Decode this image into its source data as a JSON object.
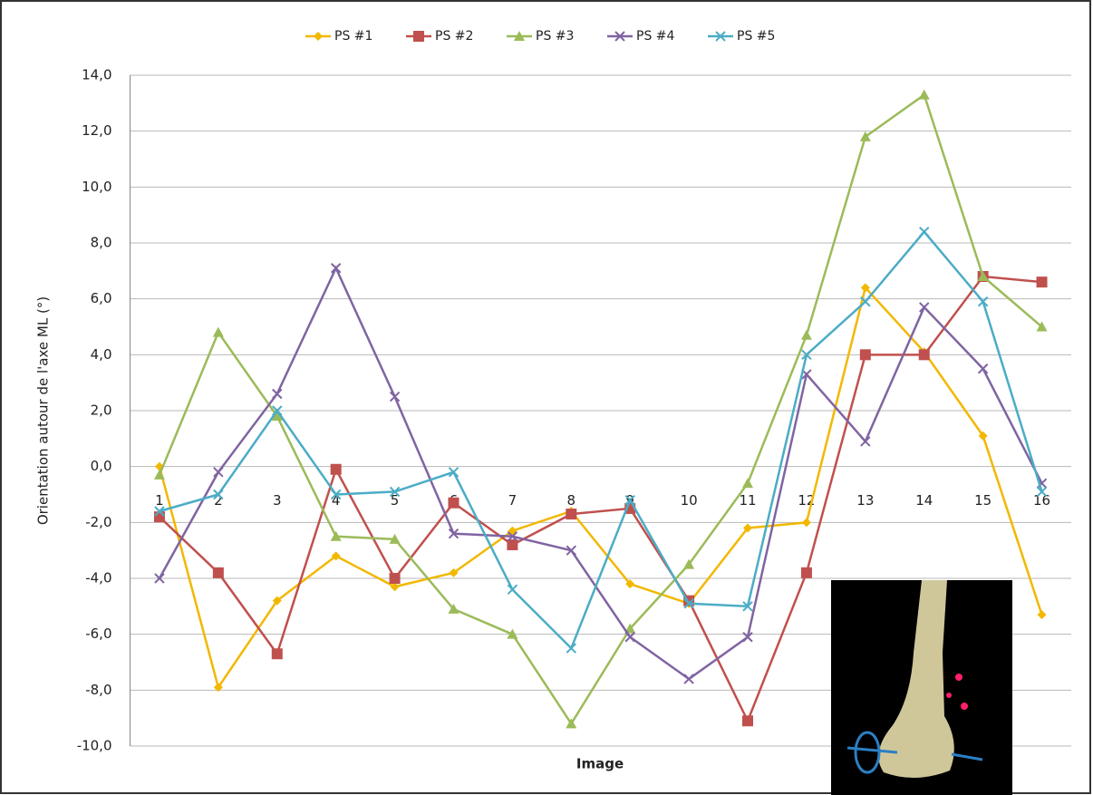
{
  "chart_data": {
    "type": "line",
    "y_label": "Orientation autour de l'axe ML (°)",
    "x_label": "Image",
    "categories": [
      "1",
      "2",
      "3",
      "4",
      "5",
      "6",
      "7",
      "8",
      "9",
      "10",
      "11",
      "12",
      "13",
      "14",
      "15",
      "16"
    ],
    "series": [
      {
        "name": "PS #1",
        "color": "#f2b800",
        "marker": "diamond",
        "values": [
          0.0,
          -7.9,
          -4.8,
          -3.2,
          -4.3,
          -3.8,
          -2.3,
          -1.6,
          -4.2,
          -4.9,
          -2.2,
          -2.0,
          6.4,
          4.1,
          1.1,
          -5.3
        ]
      },
      {
        "name": "PS #2",
        "color": "#c0504d",
        "marker": "square",
        "values": [
          -1.8,
          -3.8,
          -6.7,
          -0.1,
          -4.0,
          -1.3,
          -2.8,
          -1.7,
          -1.5,
          -4.8,
          -9.1,
          -3.8,
          4.0,
          4.0,
          6.8,
          6.6
        ]
      },
      {
        "name": "PS #3",
        "color": "#9bbb59",
        "marker": "triangle",
        "values": [
          -0.3,
          4.8,
          1.8,
          -2.5,
          -2.6,
          -5.1,
          -6.0,
          -9.2,
          -5.8,
          -3.5,
          -0.6,
          4.7,
          11.8,
          13.3,
          6.8,
          5.0
        ]
      },
      {
        "name": "PS #4",
        "color": "#8064a2",
        "marker": "cross",
        "values": [
          -4.0,
          -0.2,
          2.6,
          7.1,
          2.5,
          -2.4,
          -2.5,
          -3.0,
          -6.1,
          -7.6,
          -6.1,
          3.3,
          0.9,
          5.7,
          3.5,
          -0.6
        ]
      },
      {
        "name": "PS #5",
        "color": "#4bacc6",
        "marker": "cross",
        "values": [
          -1.6,
          -1.0,
          2.0,
          -1.0,
          -0.9,
          -0.2,
          -4.4,
          -6.5,
          -1.2,
          -4.9,
          -5.0,
          4.0,
          5.9,
          8.4,
          5.9,
          -0.9
        ]
      }
    ],
    "ylim": [
      -10,
      14
    ],
    "yticks": [
      {
        "value": -10,
        "label": "-10,0"
      },
      {
        "value": -8,
        "label": "-8,0"
      },
      {
        "value": -6,
        "label": "-6,0"
      },
      {
        "value": -4,
        "label": "-4,0"
      },
      {
        "value": -2,
        "label": "-2,0"
      },
      {
        "value": 0,
        "label": "0,0"
      },
      {
        "value": 2,
        "label": "2,0"
      },
      {
        "value": 4,
        "label": "4,0"
      },
      {
        "value": 6,
        "label": "6,0"
      },
      {
        "value": 8,
        "label": "8,0"
      },
      {
        "value": 10,
        "label": "10,0"
      },
      {
        "value": 12,
        "label": "12,0"
      },
      {
        "value": 14,
        "label": "14,0"
      }
    ],
    "grid": true,
    "legend": "top"
  }
}
